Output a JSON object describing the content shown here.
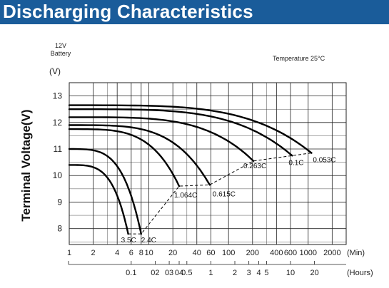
{
  "header": {
    "title": "Discharging Characteristics"
  },
  "chart_data": {
    "type": "line",
    "ylabel": "Terminal Voltage(V)",
    "yunit": "(V)",
    "battery_label": [
      "12V",
      "Battery"
    ],
    "temperature_note": "Temperature 25°C",
    "ylim": [
      7.4,
      13.5
    ],
    "yticks": [
      8,
      9,
      10,
      11,
      12,
      13
    ],
    "grid": true,
    "x_minutes_ticks": [
      {
        "v": 1,
        "label": "1"
      },
      {
        "v": 2,
        "label": "2"
      },
      {
        "v": 4,
        "label": "4"
      },
      {
        "v": 6,
        "label": "6"
      },
      {
        "v": 8,
        "label": "8"
      },
      {
        "v": 10,
        "label": "10"
      },
      {
        "v": 20,
        "label": "20"
      },
      {
        "v": 40,
        "label": "40"
      },
      {
        "v": 60,
        "label": "60"
      },
      {
        "v": 100,
        "label": "100"
      },
      {
        "v": 200,
        "label": "200"
      },
      {
        "v": 400,
        "label": "400"
      },
      {
        "v": 600,
        "label": "600"
      },
      {
        "v": 1000,
        "label": "1000"
      },
      {
        "v": 2000,
        "label": "2000"
      }
    ],
    "x_minutes_unit": "(Min)",
    "x_hours_ticks": [
      {
        "v": 0.1,
        "label": "0.1"
      },
      {
        "v": 0.2,
        "label": "02"
      },
      {
        "v": 0.3,
        "label": "03"
      },
      {
        "v": 0.4,
        "label": "04"
      },
      {
        "v": 0.5,
        "label": "0.5"
      },
      {
        "v": 1,
        "label": "1"
      },
      {
        "v": 2,
        "label": "2"
      },
      {
        "v": 3,
        "label": "3"
      },
      {
        "v": 4,
        "label": "4"
      },
      {
        "v": 5,
        "label": "5"
      },
      {
        "v": 10,
        "label": "10"
      },
      {
        "v": 20,
        "label": "20"
      }
    ],
    "x_hours_unit": "(Hours)",
    "xlim_minutes": [
      1,
      3000
    ],
    "series": [
      {
        "name": "3.5C",
        "start_v": 10.4,
        "end_t": 5.5,
        "end_v": 7.8
      },
      {
        "name": "2.4C",
        "start_v": 11.0,
        "end_t": 8,
        "end_v": 7.8
      },
      {
        "name": "1.064C",
        "start_v": 11.75,
        "end_t": 24,
        "end_v": 9.6
      },
      {
        "name": "0.615C",
        "start_v": 11.9,
        "end_t": 58,
        "end_v": 9.65
      },
      {
        "name": "0.263C",
        "start_v": 12.2,
        "end_t": 205,
        "end_v": 10.55
      },
      {
        "name": "0.1C",
        "start_v": 12.5,
        "end_t": 630,
        "end_v": 10.75
      },
      {
        "name": "0.053C",
        "start_v": 12.65,
        "end_t": 1100,
        "end_v": 10.85
      }
    ],
    "final_voltage_line": [
      [
        5.5,
        7.8
      ],
      [
        8,
        7.8
      ],
      [
        24,
        9.6
      ],
      [
        58,
        9.65
      ],
      [
        205,
        10.55
      ],
      [
        630,
        10.75
      ],
      [
        1100,
        10.85
      ]
    ]
  }
}
